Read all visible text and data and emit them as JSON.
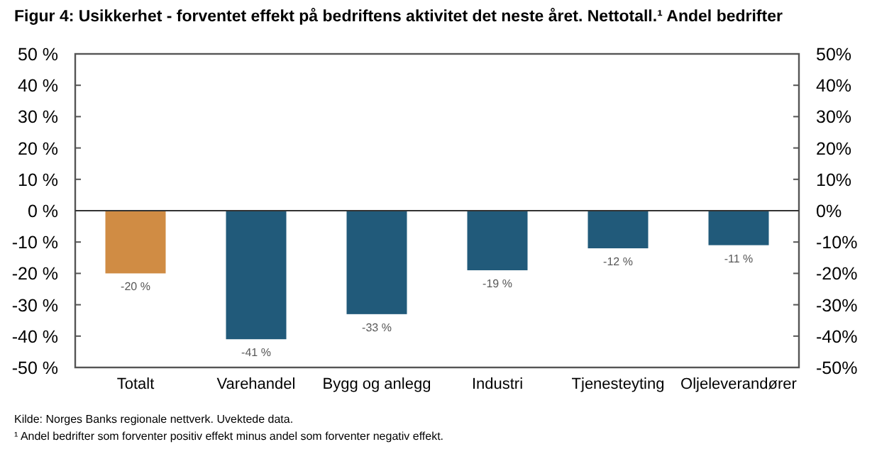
{
  "chart_data": {
    "type": "bar",
    "title": "Figur 4: Usikkerhet - forventet effekt på bedriftens aktivitet det neste året. Nettotall.¹ Andel bedrifter",
    "categories": [
      "Totalt",
      "Varehandel",
      "Bygg og anlegg",
      "Industri",
      "Tjenesteyting",
      "Oljeleverandører"
    ],
    "values": [
      -20,
      -41,
      -33,
      -19,
      -12,
      -11
    ],
    "colors": [
      "#d08c44",
      "#215a7a",
      "#215a7a",
      "#215a7a",
      "#215a7a",
      "#215a7a"
    ],
    "value_labels": [
      "-20 %",
      "-41 %",
      "-33 %",
      "-19 %",
      "-12 %",
      "-11 %"
    ],
    "ylim": [
      -50,
      50
    ],
    "yticks": [
      {
        "value": -50,
        "label": "-50 %"
      },
      {
        "value": -40,
        "label": "-40 %"
      },
      {
        "value": -30,
        "label": "-30 %"
      },
      {
        "value": -20,
        "label": "-20 %"
      },
      {
        "value": -10,
        "label": "-10 %"
      },
      {
        "value": 0,
        "label": "0 %"
      },
      {
        "value": 10,
        "label": "10 %"
      },
      {
        "value": 20,
        "label": "20 %"
      },
      {
        "value": 30,
        "label": "30 %"
      },
      {
        "value": 40,
        "label": "40 %"
      },
      {
        "value": 50,
        "label": "50 %"
      }
    ],
    "y2lim": [
      -50,
      50
    ],
    "y2ticks": [
      {
        "value": -50,
        "label": "-50%"
      },
      {
        "value": -40,
        "label": "-40%"
      },
      {
        "value": -30,
        "label": "-30%"
      },
      {
        "value": -20,
        "label": "-20%"
      },
      {
        "value": -10,
        "label": "-10%"
      },
      {
        "value": 0,
        "label": "0%"
      },
      {
        "value": 10,
        "label": "10%"
      },
      {
        "value": 20,
        "label": "20%"
      },
      {
        "value": 30,
        "label": "30%"
      },
      {
        "value": 40,
        "label": "40%"
      },
      {
        "value": 50,
        "label": "50%"
      }
    ],
    "annotations": [
      "Kilde: Norges Banks regionale nettverk. Uvektede data.",
      "¹ Andel bedrifter som forventer positiv effekt minus andel som forventer negativ effekt."
    ]
  }
}
